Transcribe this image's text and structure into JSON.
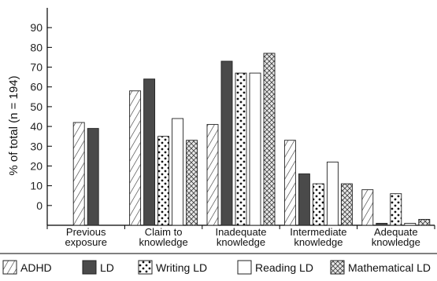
{
  "chart_data": {
    "type": "bar",
    "ylabel": "% of total (n = 194)",
    "xlabel": "",
    "yticks": [
      0,
      10,
      20,
      30,
      40,
      50,
      60,
      70,
      80,
      90
    ],
    "ylim": [
      -10,
      100
    ],
    "categories": [
      [
        "Previous",
        "exposure"
      ],
      [
        "Claim to",
        "knowledge"
      ],
      [
        "Inadequate",
        "knowledge"
      ],
      [
        "Intermediate",
        "knowledge"
      ],
      [
        "Adequate",
        "knowledge"
      ]
    ],
    "series": [
      {
        "name": "ADHD",
        "pattern": "hatch-diagonal",
        "values": [
          42,
          58,
          41,
          33,
          8
        ]
      },
      {
        "name": "LD",
        "pattern": "solid-dark",
        "values": [
          39,
          64,
          73,
          16,
          -9
        ]
      },
      {
        "name": "Writing LD",
        "pattern": "dots",
        "values": [
          null,
          35,
          67,
          11,
          6
        ]
      },
      {
        "name": "Reading LD",
        "pattern": "white",
        "values": [
          null,
          44,
          67,
          22,
          -9
        ]
      },
      {
        "name": "Mathematical LD",
        "pattern": "crosshatch",
        "values": [
          null,
          33,
          77,
          11,
          -7
        ]
      }
    ],
    "legend_position": "bottom",
    "grid": false,
    "colors": {
      "dark": "#4a4a4a",
      "stroke": "#222222"
    }
  }
}
